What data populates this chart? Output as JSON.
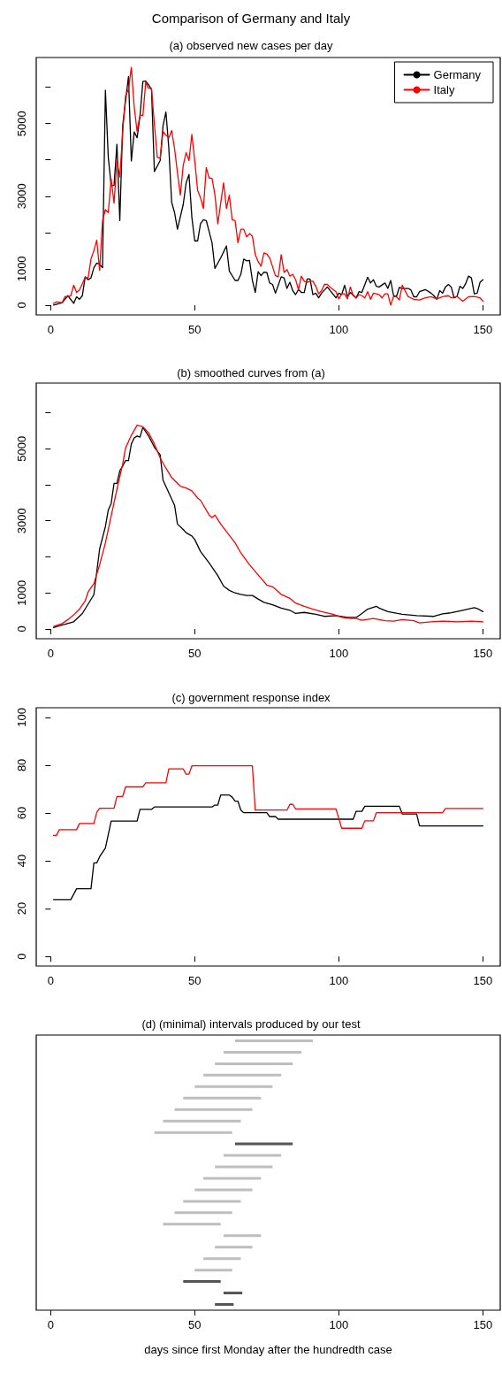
{
  "chart_data": [
    {
      "type": "line",
      "title": "Comparison of Germany and Italy",
      "subtitle": "(a) observed new cases per day",
      "legend": "top right",
      "xlim": [
        -5,
        156
      ],
      "xticks": [
        0,
        50,
        100,
        150
      ],
      "ylim": [
        -270,
        6820
      ],
      "yticks": [
        0,
        1000,
        {
          "value": 2000,
          "label": null
        },
        3000,
        {
          "value": 4000,
          "label": null
        },
        5000,
        {
          "value": 6000,
          "label": null
        }
      ],
      "series": [
        {
          "name": "Germany",
          "color": "#000000",
          "x": [
            1,
            4,
            6,
            8,
            9,
            10,
            11,
            12,
            13,
            14,
            15,
            16,
            17,
            18,
            19,
            20,
            21,
            22,
            23,
            24,
            25,
            26,
            27,
            28,
            29,
            30,
            31,
            32,
            33,
            34,
            35,
            36,
            38,
            39,
            40,
            41,
            42,
            43,
            44,
            46,
            47,
            48,
            49,
            50,
            51,
            52,
            53,
            54,
            56,
            57,
            59,
            61,
            62,
            64,
            65,
            66,
            67,
            68,
            69,
            70,
            71,
            72,
            73,
            74,
            75,
            76,
            77,
            78,
            79,
            80,
            81,
            82,
            83,
            84,
            85,
            86,
            87,
            88,
            89,
            90,
            91,
            92,
            93,
            94,
            96,
            99,
            100,
            101,
            102,
            103,
            104,
            106,
            107,
            108,
            110,
            111,
            112,
            113,
            114,
            116,
            117,
            118,
            119,
            120,
            121,
            122,
            124,
            125,
            126,
            127,
            128,
            130,
            132,
            133,
            134,
            135,
            136,
            137,
            138,
            139,
            140,
            141,
            142,
            143,
            144,
            145,
            146,
            147,
            148,
            149,
            150
          ],
          "values": [
            0,
            70,
            260,
            50,
            230,
            160,
            260,
            780,
            700,
            750,
            1030,
            1160,
            1130,
            1030,
            5920,
            4070,
            3290,
            3300,
            4430,
            2330,
            4940,
            5630,
            6290,
            3970,
            4770,
            4610,
            5200,
            6160,
            6170,
            6070,
            5940,
            3680,
            3980,
            4940,
            5320,
            4330,
            2830,
            2550,
            2090,
            2770,
            3360,
            3600,
            2420,
            1770,
            1770,
            2240,
            2350,
            2330,
            1720,
            1010,
            1300,
            1630,
            940,
            680,
            680,
            850,
            1270,
            1220,
            1230,
            680,
            350,
            920,
            810,
            910,
            900,
            610,
            570,
            330,
            550,
            780,
            750,
            460,
            630,
            400,
            290,
            430,
            350,
            350,
            720,
            720,
            290,
            330,
            200,
            330,
            500,
            200,
            330,
            290,
            550,
            240,
            350,
            200,
            370,
            350,
            770,
            610,
            700,
            520,
            500,
            610,
            460,
            680,
            260,
            240,
            490,
            460,
            460,
            420,
            230,
            230,
            370,
            430,
            330,
            260,
            160,
            400,
            330,
            500,
            570,
            500,
            200,
            240,
            520,
            460,
            590,
            800,
            750,
            310,
            330,
            630,
            700
          ]
        },
        {
          "name": "Italy",
          "color": "#ff0000",
          "x": [
            1,
            2,
            4,
            5,
            6,
            7,
            8,
            9,
            10,
            11,
            12,
            13,
            14,
            15,
            16,
            17,
            18,
            19,
            20,
            21,
            22,
            23,
            24,
            25,
            26,
            27,
            28,
            29,
            30,
            31,
            32,
            33,
            34,
            35,
            36,
            37,
            38,
            39,
            40,
            41,
            42,
            43,
            44,
            45,
            46,
            47,
            48,
            49,
            50,
            51,
            52,
            53,
            54,
            55,
            56,
            57,
            58,
            60,
            61,
            62,
            63,
            64,
            65,
            66,
            67,
            68,
            69,
            70,
            71,
            72,
            73,
            74,
            75,
            76,
            77,
            78,
            79,
            80,
            81,
            82,
            83,
            84,
            85,
            86,
            87,
            88,
            89,
            90,
            91,
            92,
            93,
            94,
            95,
            96,
            97,
            98,
            99,
            100,
            101,
            102,
            103,
            104,
            105,
            106,
            107,
            108,
            109,
            110,
            111,
            112,
            113,
            114,
            115,
            116,
            117,
            118,
            119,
            120,
            121,
            122,
            124,
            125,
            126,
            128,
            130,
            132,
            133,
            134,
            136,
            138,
            139,
            141,
            143,
            145,
            147,
            149,
            150
          ],
          "values": [
            50,
            90,
            70,
            240,
            230,
            260,
            550,
            350,
            420,
            590,
            770,
            750,
            1270,
            1500,
            1790,
            960,
            2330,
            2630,
            2550,
            3480,
            2810,
            3980,
            3530,
            4770,
            5770,
            5940,
            6550,
            5460,
            4780,
            5240,
            5220,
            6140,
            5970,
            5970,
            4980,
            4070,
            4050,
            4780,
            4680,
            4610,
            4810,
            4310,
            3650,
            3030,
            3850,
            4200,
            3980,
            4700,
            3980,
            3160,
            2960,
            2660,
            3790,
            3500,
            3490,
            3040,
            2240,
            3370,
            2660,
            3030,
            2350,
            2330,
            1720,
            2090,
            2090,
            1880,
            1970,
            1900,
            1390,
            1200,
            1070,
            1440,
            1410,
            1300,
            1060,
            810,
            780,
            1390,
            900,
            980,
            800,
            850,
            700,
            430,
            800,
            660,
            630,
            660,
            660,
            520,
            310,
            400,
            570,
            570,
            490,
            430,
            370,
            170,
            310,
            310,
            170,
            500,
            260,
            200,
            290,
            260,
            200,
            370,
            160,
            330,
            310,
            290,
            200,
            310,
            310,
            0,
            240,
            230,
            140,
            550,
            240,
            200,
            160,
            140,
            200,
            230,
            200,
            170,
            230,
            260,
            200,
            240,
            110,
            230,
            240,
            200,
            110
          ]
        }
      ]
    },
    {
      "type": "line",
      "title": "(b) smoothed curves from (a)",
      "xlim": [
        -5,
        156
      ],
      "xticks": [
        0,
        50,
        100,
        150
      ],
      "ylim": [
        -270,
        6820
      ],
      "yticks": [
        0,
        1000,
        {
          "value": 2000,
          "label": null
        },
        3000,
        {
          "value": 4000,
          "label": null
        },
        5000,
        {
          "value": 6000,
          "label": null
        }
      ],
      "series": [
        {
          "color": "#000000",
          "x": [
            1,
            3,
            5,
            8,
            11,
            15,
            17,
            19,
            20,
            21,
            22,
            23,
            24,
            25,
            26,
            27,
            28,
            29,
            30,
            31,
            32,
            34,
            36,
            38,
            39,
            41,
            43,
            44,
            46,
            47,
            49,
            50,
            52,
            55,
            58,
            60,
            62,
            64,
            66,
            68,
            70,
            72,
            74,
            77,
            80,
            83,
            85,
            88,
            92,
            95,
            99,
            103,
            106,
            108,
            110,
            113,
            114,
            117,
            122,
            127,
            133,
            136,
            139,
            143,
            147,
            148,
            150
          ],
          "values": [
            40,
            90,
            130,
            200,
            430,
            950,
            2220,
            2840,
            3300,
            3480,
            4040,
            4040,
            4390,
            4520,
            4670,
            4670,
            5130,
            5300,
            5350,
            5320,
            5590,
            5350,
            5040,
            4830,
            4130,
            3780,
            3430,
            2910,
            2760,
            2670,
            2580,
            2480,
            2150,
            1830,
            1480,
            1190,
            1070,
            1000,
            960,
            930,
            930,
            830,
            740,
            670,
            580,
            520,
            430,
            460,
            410,
            350,
            370,
            320,
            320,
            430,
            550,
            630,
            580,
            480,
            410,
            370,
            350,
            420,
            450,
            520,
            590,
            570,
            480
          ]
        },
        {
          "color": "#ff0000",
          "x": [
            1,
            4,
            6,
            8,
            10,
            12,
            13,
            15,
            17,
            19,
            21,
            23,
            25,
            26,
            28,
            30,
            32,
            34,
            36,
            38,
            40,
            42,
            45,
            47,
            49,
            51,
            52,
            55,
            56,
            57,
            59,
            61,
            64,
            66,
            69,
            72,
            75,
            77,
            80,
            83,
            85,
            88,
            91,
            94,
            98,
            101,
            104,
            106,
            108,
            112,
            116,
            119,
            122,
            126,
            128,
            132,
            136,
            141,
            146,
            150
          ],
          "values": [
            70,
            150,
            260,
            390,
            550,
            780,
            1030,
            1260,
            1780,
            2390,
            3130,
            3870,
            4580,
            5020,
            5370,
            5650,
            5610,
            5440,
            5130,
            4740,
            4460,
            4200,
            3960,
            3910,
            3830,
            3630,
            3570,
            3160,
            3090,
            3160,
            2910,
            2700,
            2390,
            2110,
            1780,
            1500,
            1220,
            1170,
            960,
            850,
            720,
            630,
            550,
            480,
            410,
            320,
            290,
            290,
            240,
            290,
            230,
            220,
            260,
            230,
            170,
            200,
            220,
            200,
            220,
            200
          ]
        }
      ]
    },
    {
      "type": "line",
      "title": "(c) government response index",
      "xlim": [
        -5,
        156
      ],
      "xticks": [
        0,
        50,
        100,
        150
      ],
      "ylim": [
        -4,
        104
      ],
      "yticks": [
        0,
        20,
        40,
        60,
        80,
        100
      ],
      "series": [
        {
          "color": "#000000",
          "x": [
            1,
            7,
            9,
            14,
            15,
            16,
            17,
            19,
            21,
            30,
            31,
            35,
            36,
            56,
            57,
            58,
            59,
            62,
            63,
            64,
            65,
            66,
            67,
            75,
            76,
            78,
            79,
            105,
            106,
            108,
            109,
            121,
            122,
            127,
            128,
            150
          ],
          "values": [
            23.8,
            23.8,
            28.3,
            28.3,
            39.1,
            39.1,
            41.7,
            45.3,
            56.6,
            56.6,
            61.5,
            61.5,
            62.5,
            62.5,
            63.3,
            63.3,
            67.5,
            67.5,
            66.6,
            64.9,
            64.9,
            61.2,
            60.1,
            60.1,
            58.5,
            58.5,
            57.4,
            57.4,
            60.7,
            60.7,
            62.8,
            62.8,
            59.6,
            59.6,
            54.6,
            54.6
          ]
        },
        {
          "color": "#ff0000",
          "x": [
            1,
            2,
            3,
            9,
            10,
            15,
            16,
            17,
            22,
            23,
            25,
            26,
            32,
            33,
            40,
            41,
            46,
            47,
            48,
            49,
            70,
            71,
            82,
            83,
            84,
            85,
            99,
            101,
            108,
            109,
            112,
            113,
            136,
            137,
            150
          ],
          "values": [
            50.6,
            50.6,
            53.0,
            53.0,
            55.6,
            55.6,
            60.3,
            62.0,
            62.0,
            66.9,
            66.9,
            70.9,
            70.9,
            72.6,
            72.6,
            78.4,
            78.4,
            76.2,
            76.2,
            79.7,
            79.7,
            61.2,
            61.2,
            63.6,
            63.6,
            61.7,
            61.7,
            53.6,
            53.6,
            56.7,
            56.7,
            60.1,
            60.1,
            61.9,
            61.9
          ]
        }
      ]
    },
    {
      "type": "bar",
      "orientation": "horizontal",
      "title": "(d) (minimal) intervals produced by our test",
      "xlabel": "days since first Monday after the hundredth case",
      "xlim": [
        -5,
        156
      ],
      "xticks": [
        0,
        50,
        100,
        150
      ],
      "tick_labels": "x",
      "categories": [
        null,
        null,
        null,
        null,
        null,
        null,
        null,
        null,
        null,
        null,
        null,
        null,
        null,
        null,
        null,
        null,
        null,
        null,
        null,
        null,
        null,
        null,
        null,
        null
      ],
      "base": [
        64,
        60,
        57,
        53,
        50,
        46,
        43,
        39,
        36,
        64,
        60,
        57,
        53,
        50,
        46,
        43,
        39,
        60,
        57,
        53,
        50,
        46,
        60,
        57
      ],
      "values": [
        27,
        27,
        27,
        27,
        27,
        27,
        27,
        27,
        27,
        20,
        20,
        20,
        20,
        20,
        20,
        20,
        20,
        13,
        13,
        13,
        13,
        13,
        6.5,
        6.5
      ],
      "colors": [
        "#bebebe",
        "#bebebe",
        "#bebebe",
        "#bebebe",
        "#bebebe",
        "#bebebe",
        "#bebebe",
        "#bebebe",
        "#bebebe",
        "#555555",
        "#bebebe",
        "#bebebe",
        "#bebebe",
        "#bebebe",
        "#bebebe",
        "#bebebe",
        "#bebebe",
        "#bebebe",
        "#bebebe",
        "#bebebe",
        "#bebebe",
        "#555555",
        "#555555",
        "#555555"
      ]
    }
  ]
}
